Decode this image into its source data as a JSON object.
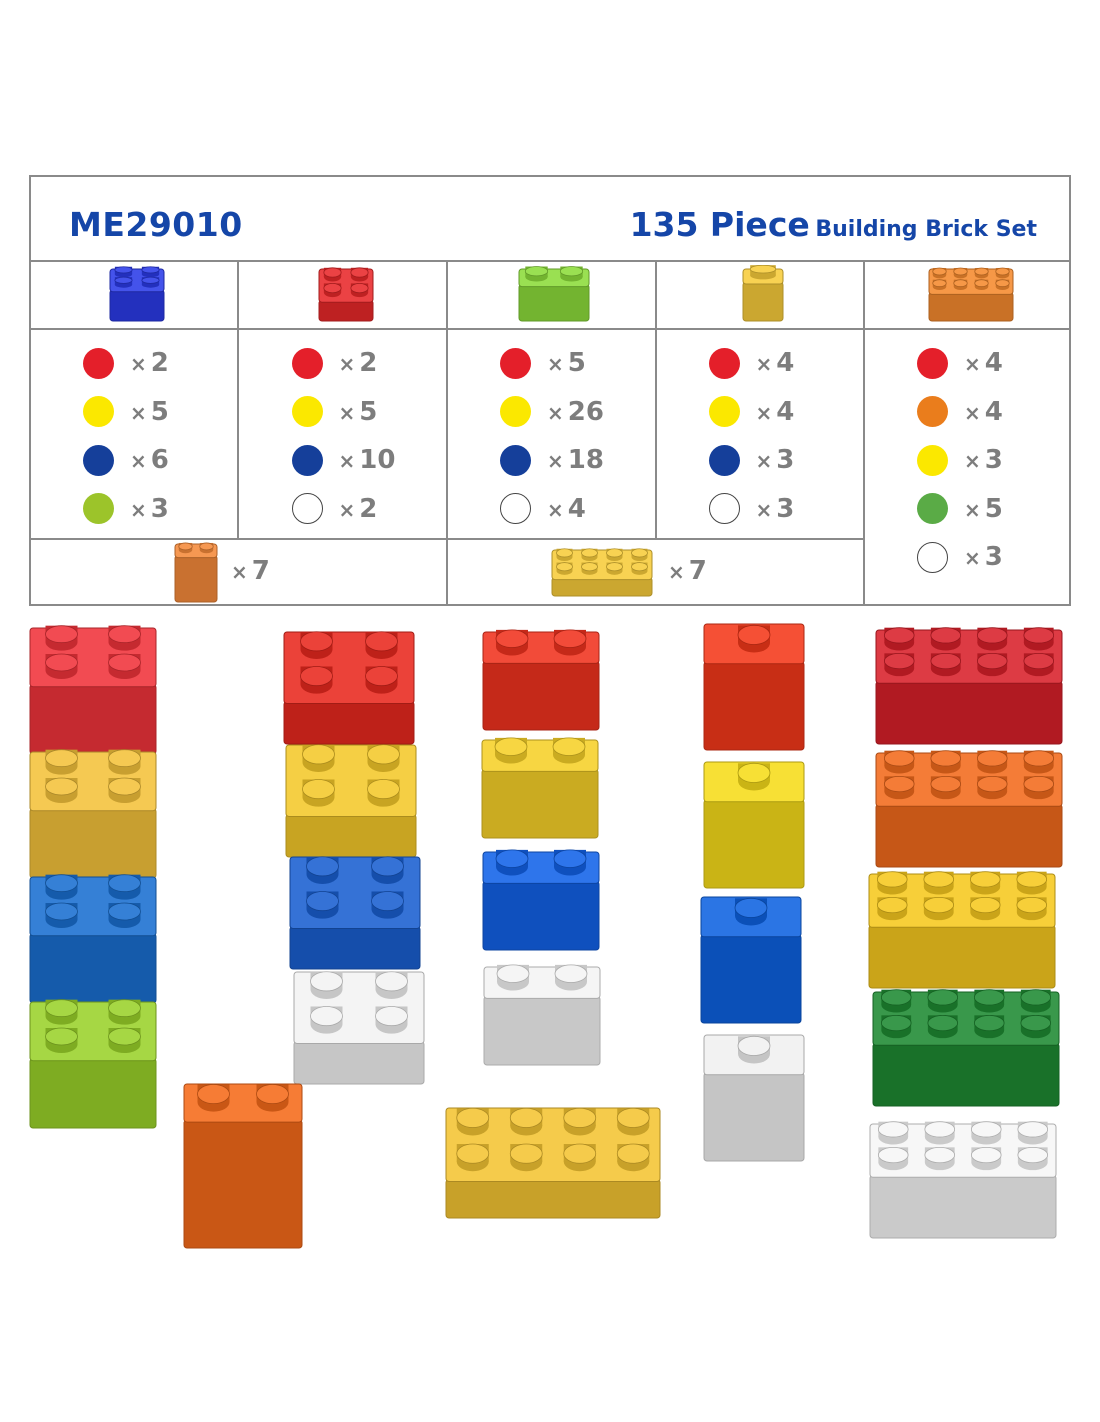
{
  "header": {
    "model": "ME29010",
    "title_big": "135 Piece",
    "title_small": "Building Brick Set"
  },
  "colors": {
    "text_blue": "#1546a8",
    "red": "#e41f2a",
    "yellow": "#fbe800",
    "blue": "#153f9a",
    "lime": "#9cc42a",
    "orange": "#ea7d1c",
    "green": "#5aab46",
    "white": "#ffffff"
  },
  "columns": [
    {
      "brick": {
        "type": "2x2",
        "color": "#2b3be8"
      },
      "counts": [
        {
          "color": "red",
          "label": "2"
        },
        {
          "color": "yellow",
          "label": "5"
        },
        {
          "color": "blue",
          "label": "6"
        },
        {
          "color": "lime",
          "label": "3"
        }
      ]
    },
    {
      "brick": {
        "type": "2x2-flat",
        "color": "#e8282a"
      },
      "counts": [
        {
          "color": "red",
          "label": "2"
        },
        {
          "color": "yellow",
          "label": "5"
        },
        {
          "color": "blue",
          "label": "10"
        },
        {
          "color": "white",
          "label": "2"
        }
      ]
    },
    {
      "brick": {
        "type": "1x2",
        "color": "#8cdc3a"
      },
      "counts": [
        {
          "color": "red",
          "label": "5"
        },
        {
          "color": "yellow",
          "label": "26"
        },
        {
          "color": "blue",
          "label": "18"
        },
        {
          "color": "white",
          "label": "4"
        }
      ]
    },
    {
      "brick": {
        "type": "1x1",
        "color": "#f7cc3a"
      },
      "counts": [
        {
          "color": "red",
          "label": "4"
        },
        {
          "color": "yellow",
          "label": "4"
        },
        {
          "color": "blue",
          "label": "3"
        },
        {
          "color": "white",
          "label": "3"
        }
      ]
    },
    {
      "brick": {
        "type": "2x4",
        "color": "#f58a2e"
      },
      "counts": [
        {
          "color": "red",
          "label": "4"
        },
        {
          "color": "orange",
          "label": "4"
        },
        {
          "color": "yellow",
          "label": "3"
        },
        {
          "color": "green",
          "label": "5"
        },
        {
          "color": "white",
          "label": "3"
        }
      ]
    }
  ],
  "extras": [
    {
      "brick": {
        "type": "1x2-tall",
        "color": "#f58a3a"
      },
      "label": "7"
    },
    {
      "brick": {
        "type": "2x4-flat",
        "color": "#f7cc3a"
      },
      "label": "7"
    }
  ],
  "times_symbol": "×",
  "gallery_colors": {
    "col1": [
      "#f0333a",
      "#f4c23a",
      "#1a6fd0",
      "#9ad22a"
    ],
    "col2": [
      "#e8281e",
      "#f4c82a",
      "#1a5fd0",
      "#f2f2f2",
      "#f56a1a"
    ],
    "col3": [
      "#f0321e",
      "#f6d028",
      "#1262e8",
      "#f4f4f4",
      "#f4c432"
    ],
    "col4": [
      "#f4381a",
      "#f6dc1a",
      "#0e62e0",
      "#f0f0f0"
    ],
    "col5": [
      "#d8202a",
      "#f26a1c",
      "#f6c81e",
      "#1e8a32",
      "#f6f6f6"
    ]
  }
}
